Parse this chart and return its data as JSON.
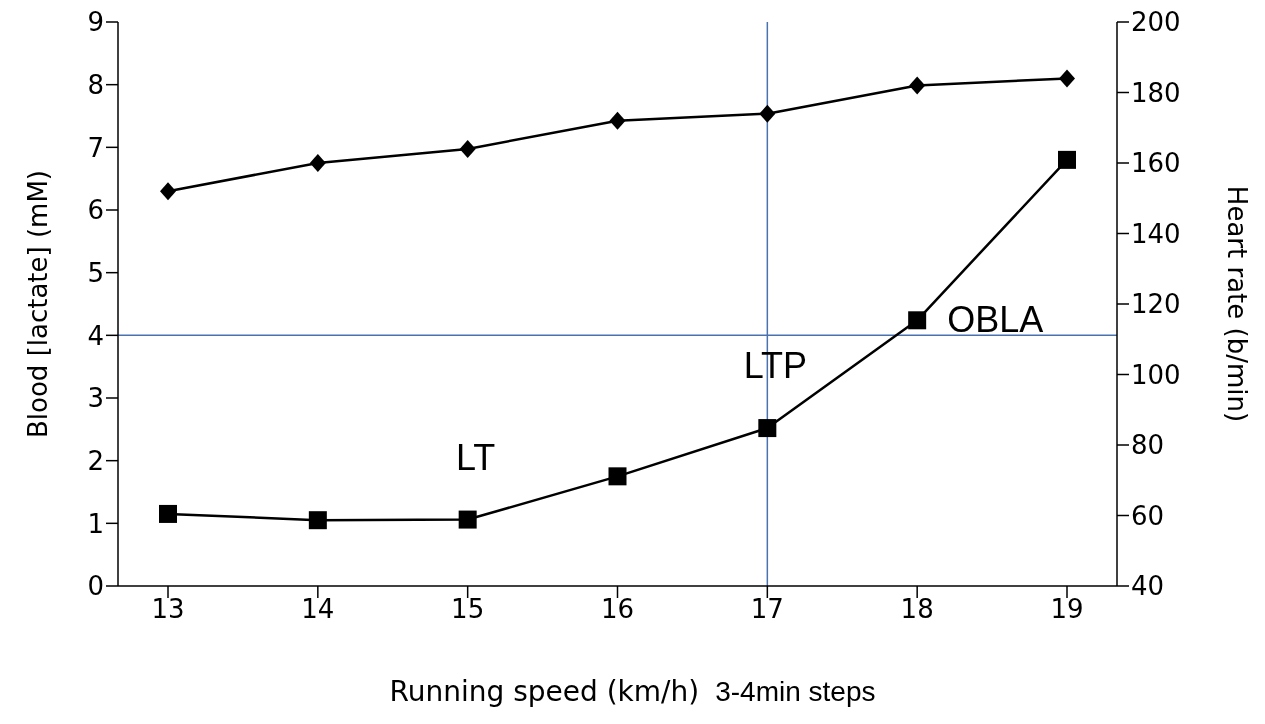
{
  "chart_data": {
    "type": "line",
    "xlabel": "Running speed (km/h)",
    "ylabel": "Blood [lactate] (mM)",
    "y2label": "Heart rate (b/min)",
    "categories": [
      "13",
      "14",
      "15",
      "16",
      "17",
      "18",
      "19"
    ],
    "series": [
      {
        "color": "#000000",
        "marker": "square",
        "values": [
          1.15,
          1.05,
          1.06,
          1.75,
          2.52,
          4.24,
          6.8
        ]
      },
      {
        "color": "#000000",
        "marker": "diamond",
        "axis": "y2",
        "values": [
          152,
          160,
          164,
          172,
          174,
          182,
          184
        ]
      }
    ],
    "ylim": [
      0,
      9
    ],
    "yticks": [
      0,
      1,
      2,
      3,
      4,
      5,
      6,
      7,
      8,
      9
    ],
    "y2lim": [
      40,
      200
    ],
    "y2ticks": [
      40,
      60,
      80,
      100,
      120,
      140,
      160,
      180,
      200
    ],
    "ref_lines": [
      {
        "axis": "y",
        "value": 4,
        "color": "#4a72b0"
      },
      {
        "axis": "x",
        "value": "17",
        "color": "#4a72b0"
      }
    ],
    "annotations": [
      {
        "text": "LT",
        "x": "15",
        "y": 1.06
      },
      {
        "text": "LTP",
        "x": "17",
        "y": 2.52
      },
      {
        "text": "OBLA",
        "x": "18",
        "y": 4.24
      },
      "3-4min steps"
    ]
  }
}
